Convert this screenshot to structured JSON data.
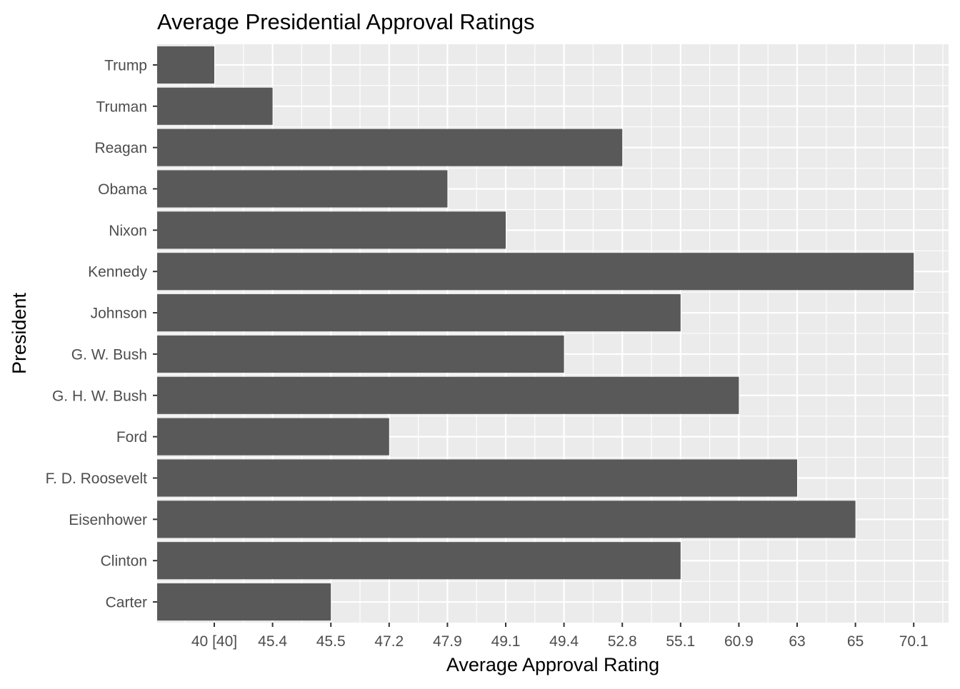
{
  "chart_data": {
    "type": "bar",
    "orientation": "horizontal",
    "title": "Average Presidential Approval Ratings",
    "xlabel": "Average Approval Rating",
    "ylabel": "President",
    "categories": [
      "Carter",
      "Clinton",
      "Eisenhower",
      "F. D. Roosevelt",
      "Ford",
      "G. H. W. Bush",
      "G. W. Bush",
      "Johnson",
      "Kennedy",
      "Nixon",
      "Obama",
      "Reagan",
      "Truman",
      "Trump"
    ],
    "values": [
      45.5,
      55.1,
      65,
      63,
      47.2,
      60.9,
      49.4,
      55.1,
      70.1,
      49.1,
      47.9,
      52.8,
      45.4,
      40
    ],
    "x_ticks": [
      "40 [40]",
      "45.4",
      "45.5",
      "47.2",
      "47.9",
      "49.1",
      "49.4",
      "52.8",
      "55.1",
      "60.9",
      "63",
      "65",
      "70.1"
    ],
    "x_axis_scale": "ordinal (ticks placed at evenly spaced ranks of the distinct values)",
    "grid": true,
    "legend": "none",
    "colors": {
      "bar": "#595959",
      "panel_background": "#ebebeb",
      "grid_major": "#ffffff",
      "tick_text": "#4d4d4d",
      "title_text": "#000000"
    }
  }
}
